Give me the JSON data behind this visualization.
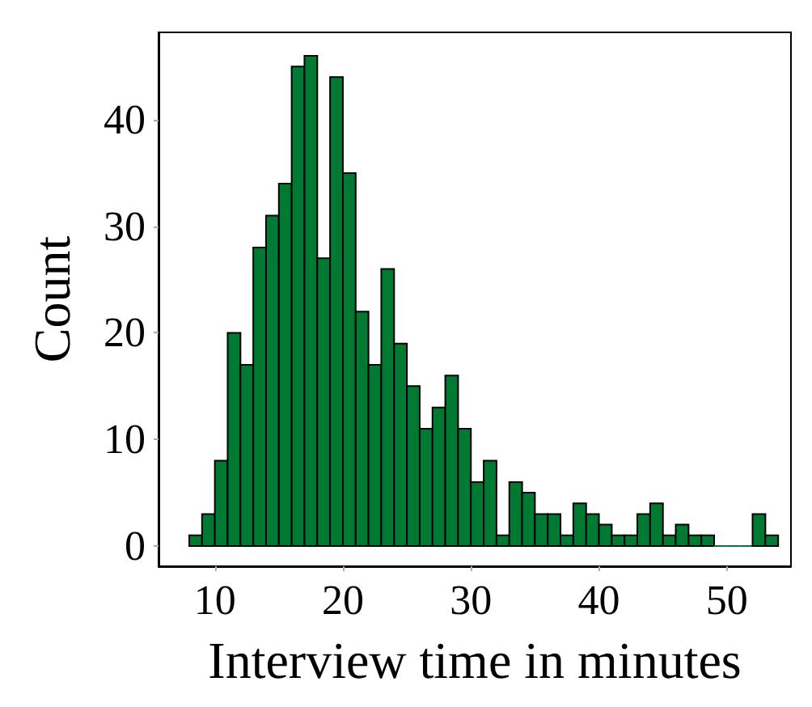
{
  "chart_data": {
    "type": "histogram",
    "xlabel": "Interview time in minutes",
    "ylabel": "Count",
    "color": "#007a33",
    "bins": [
      8,
      9,
      10,
      11,
      12,
      13,
      14,
      15,
      16,
      17,
      18,
      19,
      20,
      21,
      22,
      23,
      24,
      25,
      26,
      27,
      28,
      29,
      30,
      31,
      32,
      33,
      34,
      35,
      36,
      37,
      38,
      39,
      40,
      41,
      42,
      43,
      44,
      45,
      46,
      47,
      48,
      49,
      50,
      51,
      52,
      53,
      54
    ],
    "values": [
      1,
      3,
      8,
      20,
      17,
      28,
      31,
      34,
      45,
      46,
      27,
      44,
      35,
      22,
      17,
      26,
      19,
      15,
      11,
      13,
      16,
      11,
      6,
      8,
      1,
      6,
      5,
      3,
      3,
      1,
      4,
      3,
      2,
      1,
      1,
      3,
      4,
      1,
      2,
      1,
      1,
      0,
      0,
      0,
      3,
      1
    ],
    "xlim": [
      5.6,
      55
    ],
    "ylim": [
      -1.9,
      48.2
    ],
    "xticks": [
      10,
      20,
      30,
      40,
      50
    ],
    "yticks": [
      0,
      10,
      20,
      30,
      40
    ],
    "grid": false
  }
}
